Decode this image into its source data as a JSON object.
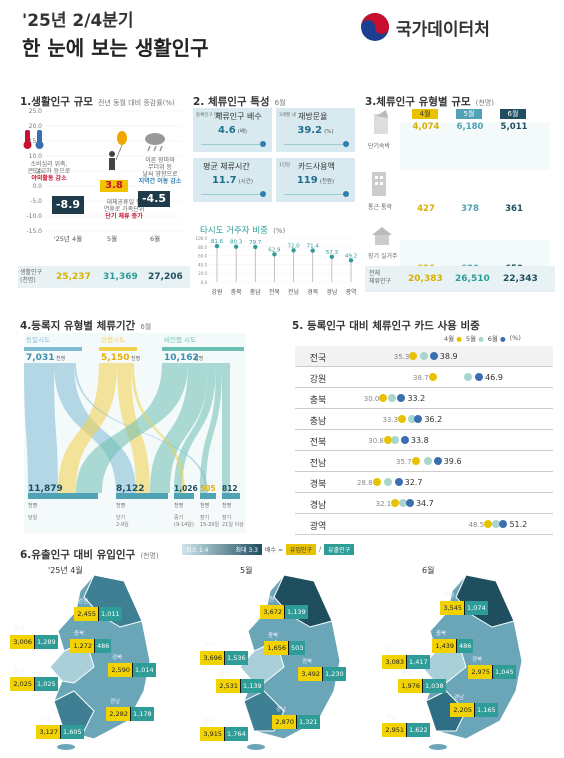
{
  "header": {
    "title_line1": "'25년 2/4분기",
    "title_line2": "한 눈에 보는 생활인구",
    "org": "국가데이터처"
  },
  "sec1": {
    "title": "1.생활인구 규모",
    "subtitle": "전년 동월 대비 증감률(%)",
    "yticks": [
      "25.0",
      "20.0",
      "15.0",
      "10.0",
      "5.0",
      "0.0",
      "-5.0",
      "-10.0",
      "-15.0"
    ],
    "months": [
      "'25년 4월",
      "5월",
      "6월"
    ],
    "values": [
      "-8.9",
      "3.8",
      "-4.5"
    ],
    "note_apr_1": "소비심리 위축,",
    "note_apr_2": "큰 일교차 등으로",
    "note_apr_3": "야외활동 감소",
    "note_may_1": "대체공휴일 등",
    "note_may_2": "연휴로 가족단위",
    "note_may_3": "단기 체류 증가",
    "note_jun_1": "이른 장마와",
    "note_jun_2": "무더위 등",
    "note_jun_3": "날씨 영향으로",
    "note_jun_4": "지역간 이동 감소",
    "pop_label_1": "생활인구",
    "pop_label_2": "(천명)",
    "pops": [
      "25,237",
      "31,369",
      "27,206"
    ]
  },
  "sec2": {
    "title": "2. 체류인구 특성",
    "subtitle": "6월",
    "cards": [
      {
        "small": "등록인구 대비",
        "label": "체류인구 배수",
        "value": "4.6",
        "unit": "(배)"
      },
      {
        "small": "3개월 내",
        "label": "재방문율",
        "value": "39.2",
        "unit": "(%)"
      },
      {
        "small": "",
        "label": "평균 체류시간",
        "value": "11.7",
        "unit": "(시간)"
      },
      {
        "small": "1인당",
        "label": "카드사용액",
        "value": "119",
        "unit": "(천원)"
      }
    ],
    "sub_title": "타시도 거주자 비중",
    "sub_unit": "(%)",
    "ticks": [
      "100.0",
      "80.0",
      "60.0",
      "40.0",
      "20.0",
      "0.0"
    ],
    "regions": [
      "강원",
      "충북",
      "충남",
      "전북",
      "전남",
      "경북",
      "경남",
      "광역"
    ],
    "values": [
      81.6,
      80.3,
      79.7,
      62.9,
      72.0,
      71.4,
      57.3,
      49.2
    ],
    "labels": [
      "81.6",
      "80.3",
      "79.7",
      "62.9",
      "72.0",
      "71.4",
      "57.3",
      "49.2"
    ]
  },
  "sec3": {
    "title": "3.체류인구 유형별 규모",
    "subtitle": "(천명)",
    "months": [
      "4월",
      "5월",
      "6월"
    ],
    "rows": [
      {
        "label": "단기숙박",
        "values": [
          "4,074",
          "6,180",
          "5,011"
        ]
      },
      {
        "label": "통근·통학",
        "values": [
          "427",
          "378",
          "361"
        ]
      },
      {
        "label": "장기 실거주",
        "values": [
          "696",
          "680",
          "650"
        ]
      },
      {
        "label": "전체 체류인구",
        "values": [
          "20,383",
          "26,510",
          "22,343"
        ]
      }
    ],
    "total_label_1": "전체",
    "total_label_2": "체류인구"
  },
  "sec4": {
    "title": "4.등록지 유형별 체류기간",
    "subtitle": "6월",
    "top_labels": [
      "동일시도",
      "인접시도",
      "비인접 시도"
    ],
    "top_values": [
      "7,031",
      "5,150",
      "10,162"
    ],
    "top_unit": "천명",
    "bottom_values": [
      "11,879",
      "8,122",
      "1,026",
      "505",
      "812"
    ],
    "bottom_unit": "천명",
    "bottom_labels": [
      "당일",
      "단기\n2-9일",
      "중기\n(9-14일)",
      "장기\n15-20일",
      "장기\n21일 이상"
    ]
  },
  "sec5": {
    "title": "5. 등록인구 대비 체류인구 카드 사용 비중",
    "legend": [
      "4월",
      "5월",
      "6월"
    ],
    "unit": "(%)",
    "regions": [
      "전국",
      "강원",
      "충북",
      "충남",
      "전북",
      "전남",
      "경북",
      "경남",
      "광역"
    ],
    "apr": [
      "35.3",
      "38.7",
      "30.0",
      "33.3",
      "30.8",
      "35.7",
      "28.8",
      "32.1",
      "48.5"
    ],
    "jun": [
      "38.9",
      "46.9",
      "33.2",
      "36.2",
      "33.8",
      "39.6",
      "32.7",
      "34.7",
      "51.2"
    ],
    "apr_n": [
      35.3,
      38.7,
      30.0,
      33.3,
      30.8,
      35.7,
      28.8,
      32.1,
      48.5
    ],
    "may_n": [
      37.2,
      45.0,
      31.5,
      35.0,
      32.0,
      37.8,
      30.8,
      33.4,
      49.8
    ],
    "jun_n": [
      38.9,
      46.9,
      33.2,
      36.2,
      33.8,
      39.6,
      32.7,
      34.7,
      51.2
    ]
  },
  "sec6": {
    "title": "6.유출인구 대비 유입인구",
    "subtitle": "(천명)",
    "legend_min": "최소 1.4",
    "legend_max": "최대 3.3",
    "legend_ratio": "배수 =",
    "legend_in": "유입인구",
    "legend_out": "유출인구",
    "maps": [
      {
        "month": "'25년 4월",
        "labels": [
          {
            "name": "강원",
            "v": "2,455",
            "o": "1,011"
          },
          {
            "name": "경기",
            "v": "3,006",
            "o": "1,289"
          },
          {
            "name": "충북",
            "v": "1,272",
            "o": "486"
          },
          {
            "name": "경북",
            "v": "2,590",
            "o": "1,014"
          },
          {
            "name": "충남",
            "v": "2,025",
            "o": "1,025"
          },
          {
            "name": "전남",
            "v": "3,127",
            "o": "1,605"
          },
          {
            "name": "경남",
            "v": "2,282",
            "o": "1,178"
          }
        ]
      },
      {
        "month": "5월",
        "labels": [
          {
            "name": "강원",
            "v": "3,672",
            "o": "1,139"
          },
          {
            "name": "충북",
            "v": "1,656",
            "o": "503"
          },
          {
            "name": "경기",
            "v": "3,696",
            "o": "1,536"
          },
          {
            "name": "경북",
            "v": "3,492",
            "o": "1,230"
          },
          {
            "name": "충남",
            "v": "2,531",
            "o": "1,139"
          },
          {
            "name": "경남",
            "v": "2,870",
            "o": "1,321"
          },
          {
            "name": "전남",
            "v": "3,915",
            "o": "1,764"
          }
        ]
      },
      {
        "month": "6월",
        "labels": [
          {
            "name": "강원",
            "v": "3,545",
            "o": "1,074"
          },
          {
            "name": "충북",
            "v": "1,439",
            "o": "486"
          },
          {
            "name": "경기",
            "v": "3,083",
            "o": "1,417"
          },
          {
            "name": "경북",
            "v": "2,975",
            "o": "1,045"
          },
          {
            "name": "충남",
            "v": "1,976",
            "o": "1,038"
          },
          {
            "name": "경남",
            "v": "2,205",
            "o": "1,165"
          },
          {
            "name": "전남",
            "v": "2,951",
            "o": "1,622"
          }
        ]
      }
    ]
  },
  "colors": {
    "may": "#4fa3b5",
    "apr": "#e8c200",
    "jun": "#1f4e5f",
    "teal": "#2e9c97",
    "light": "#a8d5cf"
  }
}
